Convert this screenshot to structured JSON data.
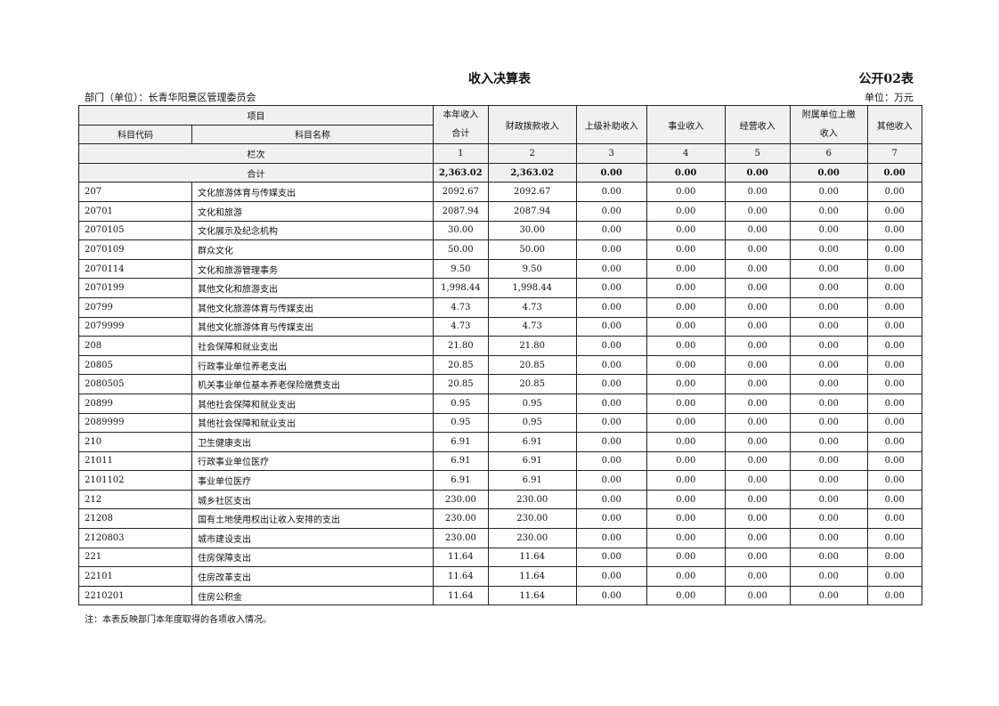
{
  "title": "收入决算表",
  "form_code": "公开02表",
  "department": "部门（单位）：长青华阳景区管理委员会",
  "unit": "单位：万元",
  "headers": {
    "item": "项目",
    "code": "科目代码",
    "name": "科目名称",
    "total_line1": "本年收入",
    "total_line2": "合计",
    "fiscal": "财政拨款收入",
    "superior": "上级补助收入",
    "business": "事业收入",
    "operating": "经营收入",
    "affiliated_line1": "附属单位上缴",
    "affiliated_line2": "收入",
    "other": "其他收入",
    "column_index_label": "栏次",
    "column_numbers": [
      "1",
      "2",
      "3",
      "4",
      "5",
      "6",
      "7"
    ]
  },
  "total_row": {
    "label": "合计",
    "values": [
      "2,363.02",
      "2,363.02",
      "0.00",
      "0.00",
      "0.00",
      "0.00",
      "0.00"
    ]
  },
  "rows": [
    {
      "code": "207",
      "name": "文化旅游体育与传媒支出",
      "values": [
        "2092.67",
        "2092.67",
        "0.00",
        "0.00",
        "0.00",
        "0.00",
        "0.00"
      ]
    },
    {
      "code": "20701",
      "name": "文化和旅游",
      "values": [
        "2087.94",
        "2087.94",
        "0.00",
        "0.00",
        "0.00",
        "0.00",
        "0.00"
      ]
    },
    {
      "code": "2070105",
      "name": "文化展示及纪念机构",
      "values": [
        "30.00",
        "30.00",
        "0.00",
        "0.00",
        "0.00",
        "0.00",
        "0.00"
      ]
    },
    {
      "code": "2070109",
      "name": "群众文化",
      "values": [
        "50.00",
        "50.00",
        "0.00",
        "0.00",
        "0.00",
        "0.00",
        "0.00"
      ]
    },
    {
      "code": "2070114",
      "name": "文化和旅游管理事务",
      "values": [
        "9.50",
        "9.50",
        "0.00",
        "0.00",
        "0.00",
        "0.00",
        "0.00"
      ]
    },
    {
      "code": "2070199",
      "name": "其他文化和旅游支出",
      "values": [
        "1,998.44",
        "1,998.44",
        "0.00",
        "0.00",
        "0.00",
        "0.00",
        "0.00"
      ]
    },
    {
      "code": "20799",
      "name": "其他文化旅游体育与传媒支出",
      "values": [
        "4.73",
        "4.73",
        "0.00",
        "0.00",
        "0.00",
        "0.00",
        "0.00"
      ]
    },
    {
      "code": "2079999",
      "name": "其他文化旅游体育与传媒支出",
      "values": [
        "4.73",
        "4.73",
        "0.00",
        "0.00",
        "0.00",
        "0.00",
        "0.00"
      ]
    },
    {
      "code": "208",
      "name": "社会保障和就业支出",
      "values": [
        "21.80",
        "21.80",
        "0.00",
        "0.00",
        "0.00",
        "0.00",
        "0.00"
      ]
    },
    {
      "code": "20805",
      "name": "行政事业单位养老支出",
      "values": [
        "20.85",
        "20.85",
        "0.00",
        "0.00",
        "0.00",
        "0.00",
        "0.00"
      ]
    },
    {
      "code": "2080505",
      "name": "机关事业单位基本养老保险缴费支出",
      "values": [
        "20.85",
        "20.85",
        "0.00",
        "0.00",
        "0.00",
        "0.00",
        "0.00"
      ]
    },
    {
      "code": "20899",
      "name": "其他社会保障和就业支出",
      "values": [
        "0.95",
        "0.95",
        "0.00",
        "0.00",
        "0.00",
        "0.00",
        "0.00"
      ]
    },
    {
      "code": "2089999",
      "name": "其他社会保障和就业支出",
      "values": [
        "0.95",
        "0.95",
        "0.00",
        "0.00",
        "0.00",
        "0.00",
        "0.00"
      ]
    },
    {
      "code": "210",
      "name": "卫生健康支出",
      "values": [
        "6.91",
        "6.91",
        "0.00",
        "0.00",
        "0.00",
        "0.00",
        "0.00"
      ]
    },
    {
      "code": "21011",
      "name": "行政事业单位医疗",
      "values": [
        "6.91",
        "6.91",
        "0.00",
        "0.00",
        "0.00",
        "0.00",
        "0.00"
      ]
    },
    {
      "code": "2101102",
      "name": "事业单位医疗",
      "values": [
        "6.91",
        "6.91",
        "0.00",
        "0.00",
        "0.00",
        "0.00",
        "0.00"
      ]
    },
    {
      "code": "212",
      "name": "城乡社区支出",
      "values": [
        "230.00",
        "230.00",
        "0.00",
        "0.00",
        "0.00",
        "0.00",
        "0.00"
      ]
    },
    {
      "code": "21208",
      "name": "国有土地使用权出让收入安排的支出",
      "values": [
        "230.00",
        "230.00",
        "0.00",
        "0.00",
        "0.00",
        "0.00",
        "0.00"
      ]
    },
    {
      "code": "2120803",
      "name": "城市建设支出",
      "values": [
        "230.00",
        "230.00",
        "0.00",
        "0.00",
        "0.00",
        "0.00",
        "0.00"
      ]
    },
    {
      "code": "221",
      "name": "住房保障支出",
      "values": [
        "11.64",
        "11.64",
        "0.00",
        "0.00",
        "0.00",
        "0.00",
        "0.00"
      ]
    },
    {
      "code": "22101",
      "name": "住房改革支出",
      "values": [
        "11.64",
        "11.64",
        "0.00",
        "0.00",
        "0.00",
        "0.00",
        "0.00"
      ]
    },
    {
      "code": "2210201",
      "name": "住房公积金",
      "values": [
        "11.64",
        "11.64",
        "0.00",
        "0.00",
        "0.00",
        "0.00",
        "0.00"
      ]
    }
  ],
  "note": "注：本表反映部门本年度取得的各项收入情况。"
}
